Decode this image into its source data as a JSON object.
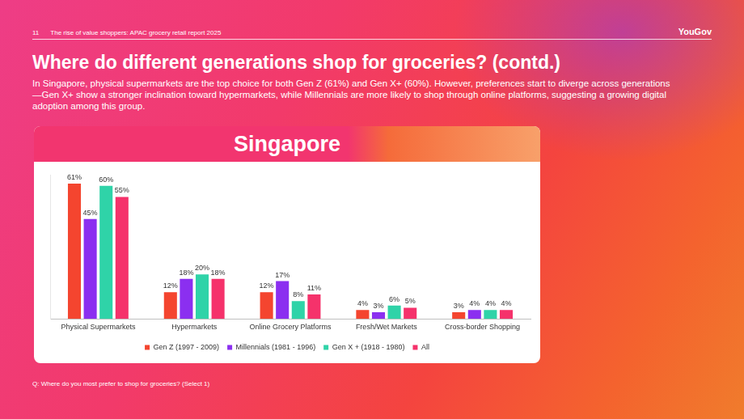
{
  "header": {
    "page_number": "11",
    "report": "The rise of value shoppers: APAC grocery retail report 2025",
    "brand": "YouGov"
  },
  "title": "Where do different generations shop for groceries? (contd.)",
  "subtitle": "In Singapore, physical supermarkets are the top choice for both Gen Z (61%) and Gen X+ (60%). However, preferences start to diverge across generations—Gen X+ show a stronger inclination toward hypermarkets, while Millennials are more likely to shop through online platforms, suggesting a growing digital adoption among this group.",
  "note": "Q: Where do you most prefer to shop for groceries? (Select 1)",
  "chart_data": {
    "type": "bar",
    "title": "Singapore",
    "categories": [
      "Physical Supermarkets",
      "Hypermarkets",
      "Online Grocery Platforms",
      "Fresh/Wet Markets",
      "Cross-border Shopping"
    ],
    "series": [
      {
        "name": "Gen Z (1997 - 2009)",
        "color": "#f4452f",
        "values": [
          61,
          12,
          12,
          4,
          3
        ],
        "value_labels": [
          "61%",
          "12%",
          "12%",
          "4%",
          "3%"
        ]
      },
      {
        "name": "Millennials (1981 - 1996)",
        "color": "#8b2ff0",
        "values": [
          45,
          18,
          17,
          3,
          4
        ],
        "value_labels": [
          "45%",
          "18%",
          "17%",
          "3%",
          "4%"
        ]
      },
      {
        "name": "Gen X + (1918 - 1980)",
        "color": "#2fd3a8",
        "values": [
          60,
          20,
          8,
          6,
          4
        ],
        "value_labels": [
          "60%",
          "20%",
          "8%",
          "6%",
          "4%"
        ]
      },
      {
        "name": "All",
        "color": "#f5326b",
        "values": [
          55,
          18,
          11,
          5,
          4
        ],
        "value_labels": [
          "55%",
          "18%",
          "11%",
          "5%",
          "4%"
        ]
      }
    ],
    "ylim": [
      0,
      65
    ],
    "grid": false,
    "legend": "bottom",
    "data_labels": true,
    "tick_labels": "x"
  }
}
